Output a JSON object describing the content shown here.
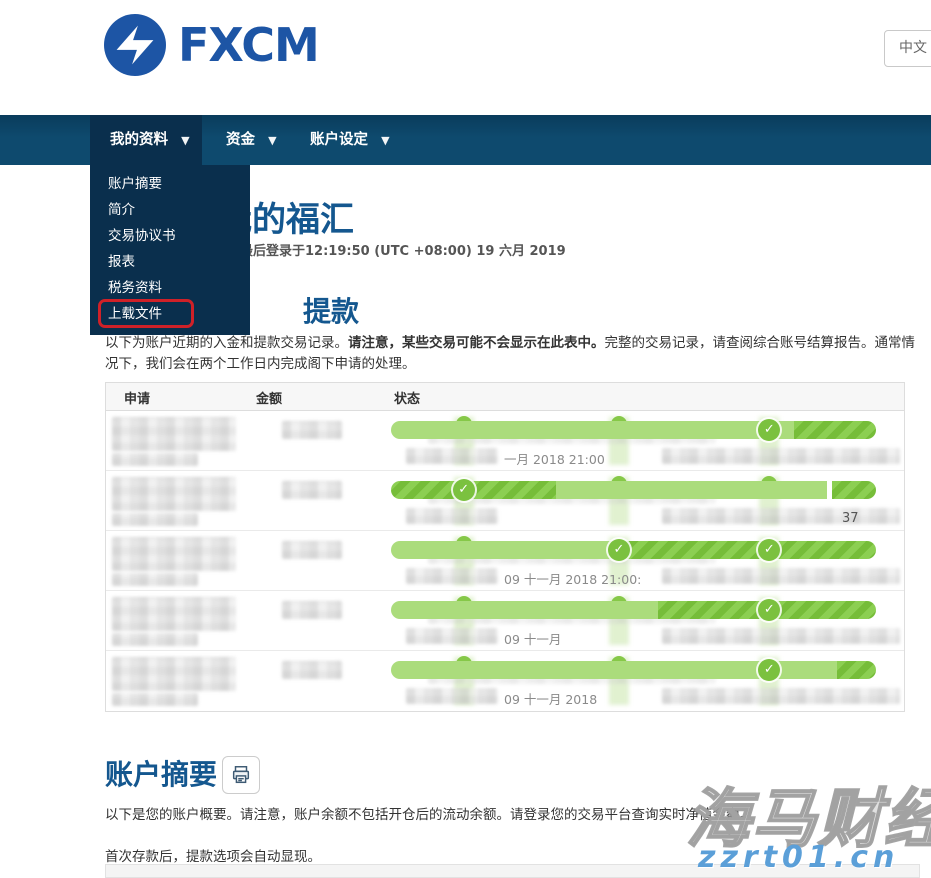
{
  "colors": {
    "brand_blue": "#1d55a5",
    "nav_bar": "#0e4a6e",
    "nav_active_and_dropdown": "#0a2f4d",
    "heading_blue": "#14578f",
    "progress_green_solid": "#abdc7c",
    "progress_green_striped": "#76bd39",
    "annotation_red": "#cf2128",
    "watermark_blue": "#5b9fd8"
  },
  "header": {
    "logo_text": "FXCM",
    "language_button": "中文"
  },
  "nav": {
    "items": [
      {
        "label": "我的资料",
        "active": true
      },
      {
        "label": "资金",
        "active": false
      },
      {
        "label": "账户设定",
        "active": false
      }
    ],
    "dropdown": {
      "items": [
        "账户摘要",
        "简介",
        "交易协议书",
        "报表",
        "税务资料",
        "上载文件"
      ],
      "highlighted_item": "上载文件"
    }
  },
  "main": {
    "page_title": "我的福汇",
    "last_login": "最后登录于12:19:50 (UTC +08:00) 19 六月 2019",
    "withdraw_section": {
      "heading_visible": "提款",
      "desc_part1": "以下为账户近期的入金和提款交易记录。",
      "desc_bold": "请注意，某些交易可能不会显示在此表中。",
      "desc_part2": "完整的交易记录，请查阅综合账号结算报告。通常情况下，我们会在两个工作日内完成阁下申请的处理。",
      "table": {
        "columns": [
          "申请",
          "金额",
          "状态"
        ],
        "rows": [
          {
            "application": "（已打码）",
            "amount": "（已打码）",
            "date_fragment": "一月 2018 21:00",
            "right_fragment": "",
            "bar": {
              "segments": [
                {
                  "style": "solid",
                  "from": 0,
                  "to": 83
                },
                {
                  "style": "striped",
                  "from": 83,
                  "to": 100
                }
              ],
              "checkpoints": [
                78
              ],
              "bumps": [
                15,
                47
              ]
            }
          },
          {
            "application": "（已打码）",
            "amount": "（已打码）",
            "date_fragment": "",
            "right_fragment": "37",
            "bar": {
              "segments": [
                {
                  "style": "striped",
                  "from": 0,
                  "to": 34
                },
                {
                  "style": "solid",
                  "from": 34,
                  "to": 90
                },
                {
                  "style": "striped",
                  "from": 91,
                  "to": 100
                }
              ],
              "checkpoints": [
                15
              ],
              "bumps": [
                47,
                78
              ]
            }
          },
          {
            "application": "（已打码）",
            "amount": "（已打码）",
            "date_fragment": "09 十一月 2018 21:00:",
            "right_fragment": "",
            "bar": {
              "segments": [
                {
                  "style": "solid",
                  "from": 0,
                  "to": 47
                },
                {
                  "style": "striped",
                  "from": 47,
                  "to": 100
                }
              ],
              "checkpoints": [
                47,
                78
              ],
              "bumps": [
                15
              ]
            }
          },
          {
            "application": "（已打码）",
            "amount": "（已打码）",
            "date_fragment": "09 十一月",
            "right_fragment": "",
            "bar": {
              "segments": [
                {
                  "style": "solid",
                  "from": 0,
                  "to": 55
                },
                {
                  "style": "striped",
                  "from": 55,
                  "to": 100
                }
              ],
              "checkpoints": [
                78
              ],
              "bumps": [
                15,
                47
              ]
            }
          },
          {
            "application": "（已打码）",
            "amount": "（已打码）",
            "date_fragment": "09 十一月 2018",
            "right_fragment": "",
            "bar": {
              "segments": [
                {
                  "style": "solid",
                  "from": 0,
                  "to": 92
                },
                {
                  "style": "striped",
                  "from": 92,
                  "to": 100
                }
              ],
              "checkpoints": [
                78
              ],
              "bumps": [
                15,
                47
              ]
            }
          }
        ]
      }
    },
    "summary_section": {
      "heading": "账户摘要",
      "desc1": "以下是您的账户概要。请注意，账户余额不包括开仓后的流动余额。请登录您的交易平台查询实时净值余额。",
      "desc2": "首次存款后，提款选项会自动显现。"
    }
  },
  "watermark": {
    "brand": "海马财经",
    "url": "zzrt01.cn"
  }
}
